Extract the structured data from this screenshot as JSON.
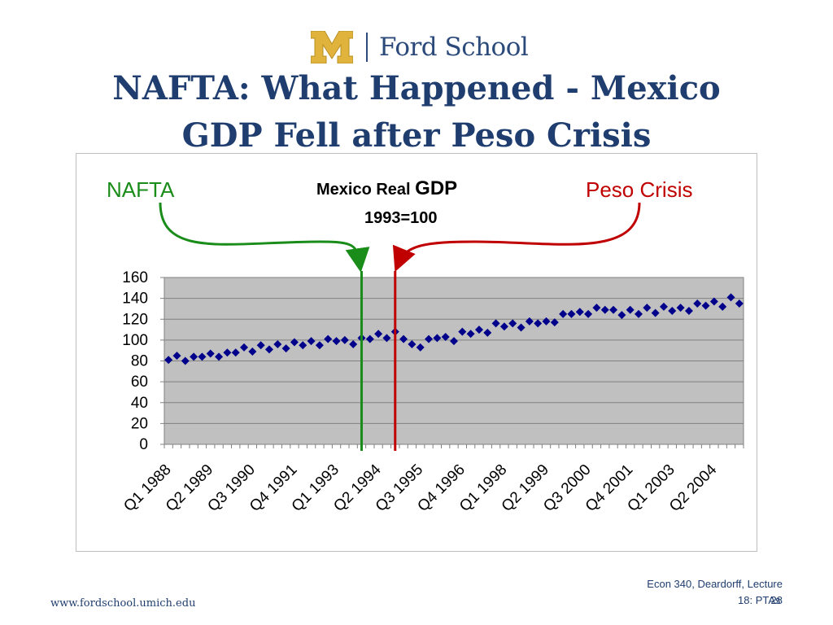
{
  "header": {
    "logo_text": "Ford School",
    "logo_mark": "M",
    "title_line1": "NAFTA: What Happened - Mexico",
    "title_line2": "GDP Fell after Peso Crisis"
  },
  "annotations": {
    "nafta_label": "NAFTA",
    "peso_label": "Peso Crisis",
    "nafta_color": "#1a8c1a",
    "peso_color": "#c00000"
  },
  "chart_data": {
    "type": "scatter",
    "title_part1": "Mexico Real ",
    "title_part2": "GDP",
    "subtitle": "1993=100",
    "xlabel": "",
    "ylabel": "",
    "ylim": [
      0,
      160
    ],
    "yticks": [
      "0",
      "20",
      "40",
      "60",
      "80",
      "100",
      "120",
      "140",
      "160"
    ],
    "ytick_values": [
      0,
      20,
      40,
      60,
      80,
      100,
      120,
      140,
      160
    ],
    "x_tick_labels": [
      "Q1 1988",
      "Q2 1989",
      "Q3 1990",
      "Q4 1991",
      "Q1 1993",
      "Q2 1994",
      "Q3 1995",
      "Q4 1996",
      "Q1 1998",
      "Q2 1999",
      "Q3 2000",
      "Q4 2001",
      "Q1 2003",
      "Q2 2004"
    ],
    "x_tick_indices": [
      0,
      5,
      10,
      15,
      20,
      25,
      30,
      35,
      40,
      45,
      50,
      55,
      60,
      65
    ],
    "grid": true,
    "plot_background": "#c0c0c0",
    "marker_color": "#00008b",
    "nafta_index": 23.5,
    "peso_index": 27.5,
    "series": [
      {
        "name": "Mexico Real GDP",
        "values": [
          81,
          85,
          80,
          84,
          84,
          87,
          84,
          88,
          88,
          93,
          89,
          95,
          91,
          96,
          92,
          98,
          95,
          99,
          95,
          101,
          99,
          100,
          96,
          102,
          101,
          106,
          102,
          108,
          101,
          96,
          93,
          101,
          102,
          103,
          99,
          108,
          106,
          110,
          107,
          116,
          113,
          116,
          112,
          118,
          116,
          118,
          117,
          125,
          125,
          127,
          125,
          131,
          129,
          129,
          124,
          129,
          125,
          131,
          126,
          132,
          128,
          131,
          128,
          135,
          133,
          137,
          132,
          141,
          135
        ]
      }
    ]
  },
  "footer": {
    "url": "www.fordschool.umich.edu",
    "course_line1": "Econ 340, Deardorff, Lecture",
    "course_line2": "18: PTAs",
    "page_number": "28"
  }
}
